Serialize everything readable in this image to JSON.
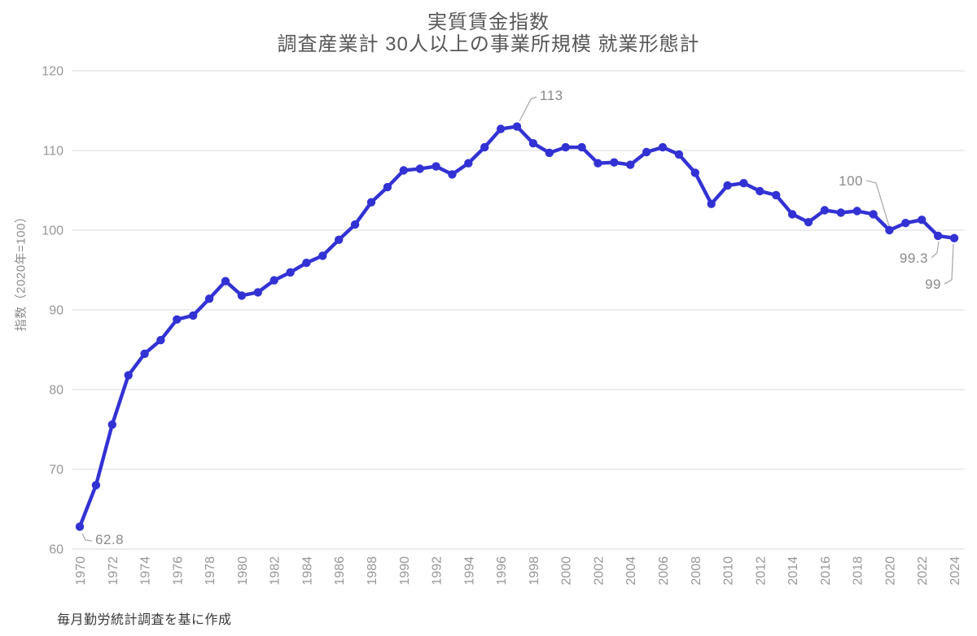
{
  "chart_data": {
    "type": "line",
    "title": "実質賃金指数",
    "subtitle": "調査産業計 30人以上の事業所規模 就業形態計",
    "ylabel": "指数（2020年=100）",
    "source_note": "毎月勤労統計調査を基に作成",
    "legend": "none",
    "grid": "horizontal-only",
    "ylim": [
      60,
      120
    ],
    "yticks": [
      60,
      70,
      80,
      90,
      100,
      110,
      120
    ],
    "xticks": [
      1970,
      1972,
      1974,
      1976,
      1978,
      1980,
      1982,
      1984,
      1986,
      1988,
      1990,
      1992,
      1994,
      1996,
      1998,
      2000,
      2002,
      2004,
      2006,
      2008,
      2010,
      2012,
      2014,
      2016,
      2018,
      2020,
      2022,
      2024
    ],
    "x": [
      1970,
      1971,
      1972,
      1973,
      1974,
      1975,
      1976,
      1977,
      1978,
      1979,
      1980,
      1981,
      1982,
      1983,
      1984,
      1985,
      1986,
      1987,
      1988,
      1989,
      1990,
      1991,
      1992,
      1993,
      1994,
      1995,
      1996,
      1997,
      1998,
      1999,
      2000,
      2001,
      2002,
      2003,
      2004,
      2005,
      2006,
      2007,
      2008,
      2009,
      2010,
      2011,
      2012,
      2013,
      2014,
      2015,
      2016,
      2017,
      2018,
      2019,
      2020,
      2021,
      2022,
      2023,
      2024
    ],
    "values": [
      62.8,
      68.0,
      75.6,
      81.8,
      84.5,
      86.2,
      88.8,
      89.3,
      91.4,
      93.6,
      91.8,
      92.2,
      93.7,
      94.7,
      95.9,
      96.8,
      98.8,
      100.7,
      103.5,
      105.4,
      107.5,
      107.7,
      108.0,
      107.0,
      108.4,
      110.4,
      112.7,
      113.0,
      110.9,
      109.7,
      110.4,
      110.4,
      108.4,
      108.5,
      108.2,
      109.8,
      110.4,
      109.5,
      107.2,
      103.3,
      105.6,
      105.9,
      104.9,
      104.4,
      102.0,
      101.0,
      102.5,
      102.2,
      102.4,
      102.0,
      100.0,
      100.9,
      101.3,
      99.3,
      99.0
    ],
    "annotations": [
      {
        "year": 1970,
        "label": "62.8"
      },
      {
        "year": 1997,
        "label": "113"
      },
      {
        "year": 2020,
        "label": "100"
      },
      {
        "year": 2023,
        "label": "99.3"
      },
      {
        "year": 2024,
        "label": "99"
      }
    ],
    "line_color": "#3232d4",
    "grid_color": "#d9d9d9",
    "tick_color": "#979797",
    "annotation_color": "#8a8a8a",
    "leader_color": "#ababab"
  }
}
